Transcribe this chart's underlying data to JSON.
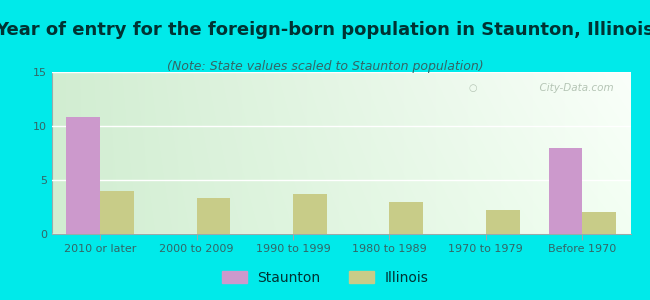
{
  "title": "Year of entry for the foreign-born population in Staunton, Illinois",
  "subtitle": "(Note: State values scaled to Staunton population)",
  "categories": [
    "2010 or later",
    "2000 to 2009",
    "1990 to 1999",
    "1980 to 1989",
    "1970 to 1979",
    "Before 1970"
  ],
  "staunton_values": [
    10.8,
    0,
    0,
    0,
    0,
    8.0
  ],
  "illinois_values": [
    4.0,
    3.3,
    3.7,
    3.0,
    2.2,
    2.0
  ],
  "staunton_color": "#cc99cc",
  "illinois_color": "#c8cc88",
  "background_outer": "#00eaea",
  "background_inner_topleft": "#d8edd8",
  "background_inner_topright": "#f5faf5",
  "background_inner_bottomleft": "#e8f4e0",
  "background_inner_bottomright": "#ffffff",
  "ylim": [
    0,
    15
  ],
  "yticks": [
    0,
    5,
    10,
    15
  ],
  "bar_width": 0.35,
  "title_fontsize": 13,
  "subtitle_fontsize": 9,
  "legend_fontsize": 10,
  "tick_fontsize": 8,
  "title_color": "#003333",
  "subtitle_color": "#336666",
  "tick_color": "#336666",
  "watermark": "  City-Data.com",
  "watermark_color": "#aabbaa"
}
